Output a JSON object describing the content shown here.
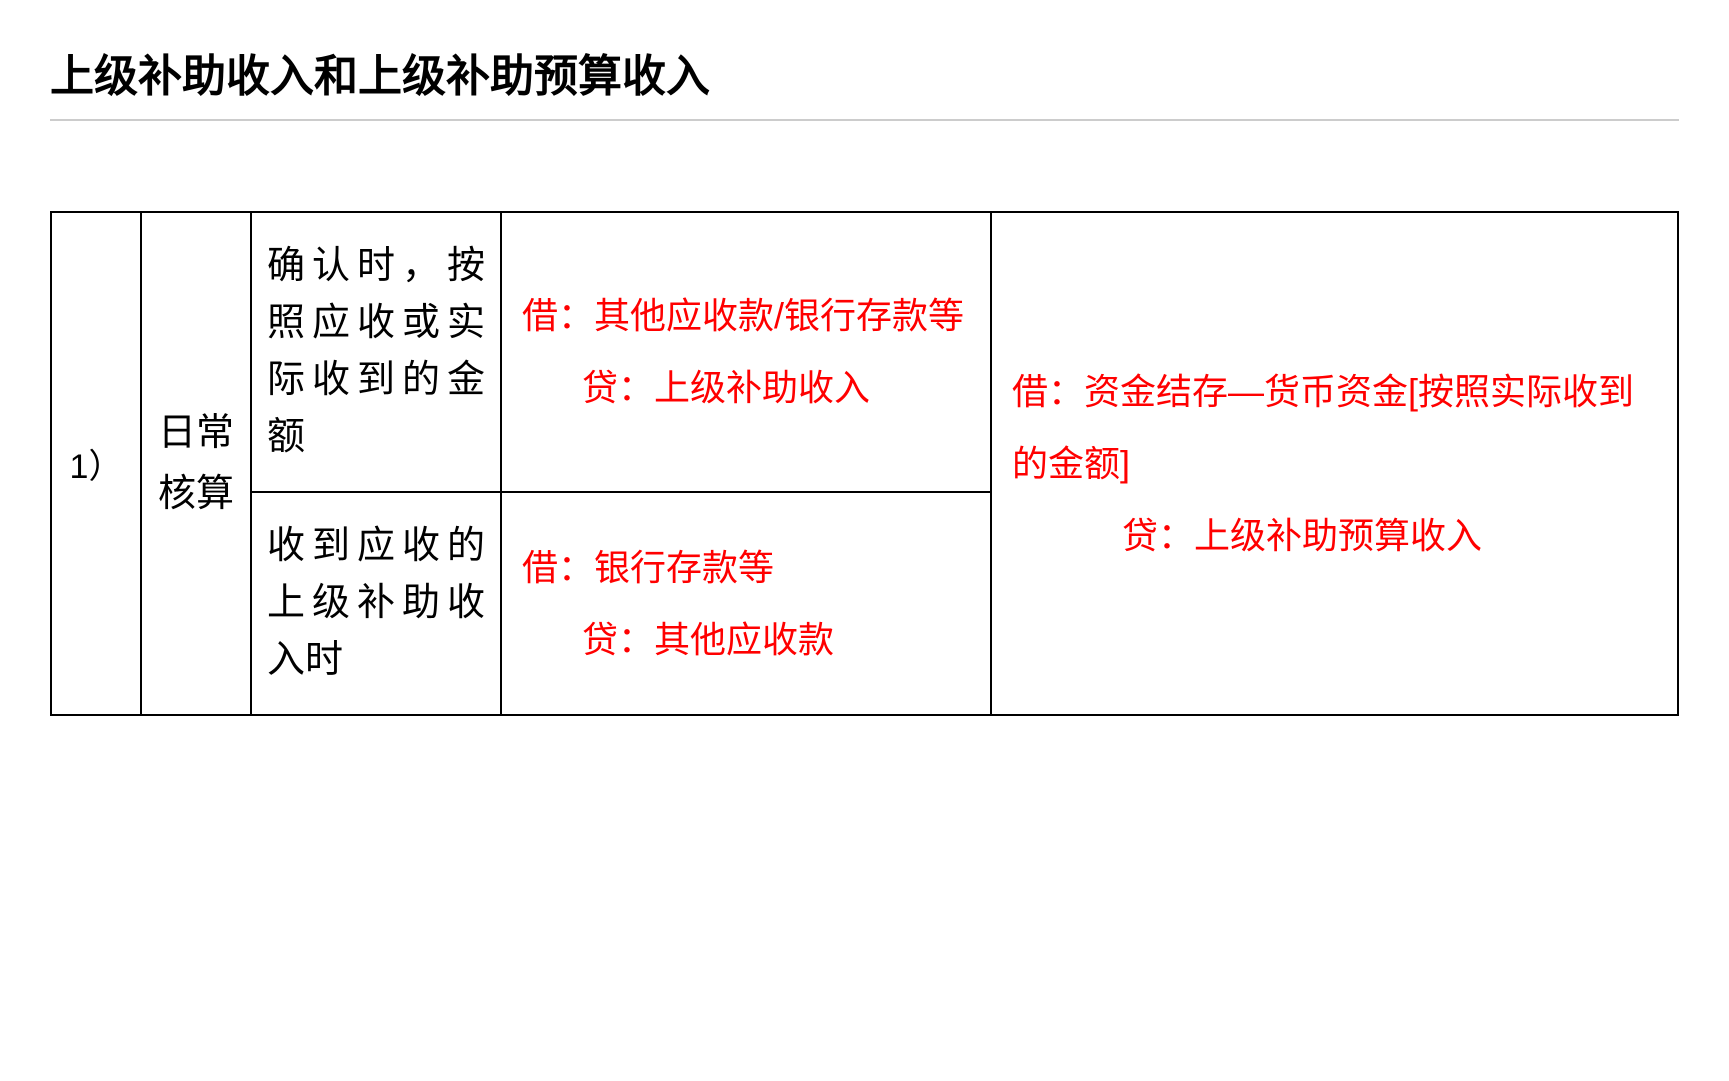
{
  "title": "上级补助收入和上级补助预算收入",
  "table": {
    "border_color": "#000000",
    "text_color": "#000000",
    "entry_color": "#ff0000",
    "divider_color": "#cccccc",
    "background_color": "#ffffff",
    "title_fontsize": 44,
    "cell_fontsize": 38,
    "entry_fontsize": 36,
    "rows": [
      {
        "index": "1）",
        "category": "日常核算",
        "subrows": [
          {
            "desc": "确认时，按照应收或实际收到的金额",
            "entry_debit": "借：其他应收款/银行存款等",
            "entry_credit": "贷：上级补助收入"
          },
          {
            "desc": "收到应收的上级补助收入时",
            "entry_debit": "借：银行存款等",
            "entry_credit": "贷：其他应收款"
          }
        ],
        "right_entry": {
          "debit": "借：资金结存—货币资金[按照实际收到的金额]",
          "credit": "贷：上级补助预算收入"
        }
      }
    ]
  }
}
